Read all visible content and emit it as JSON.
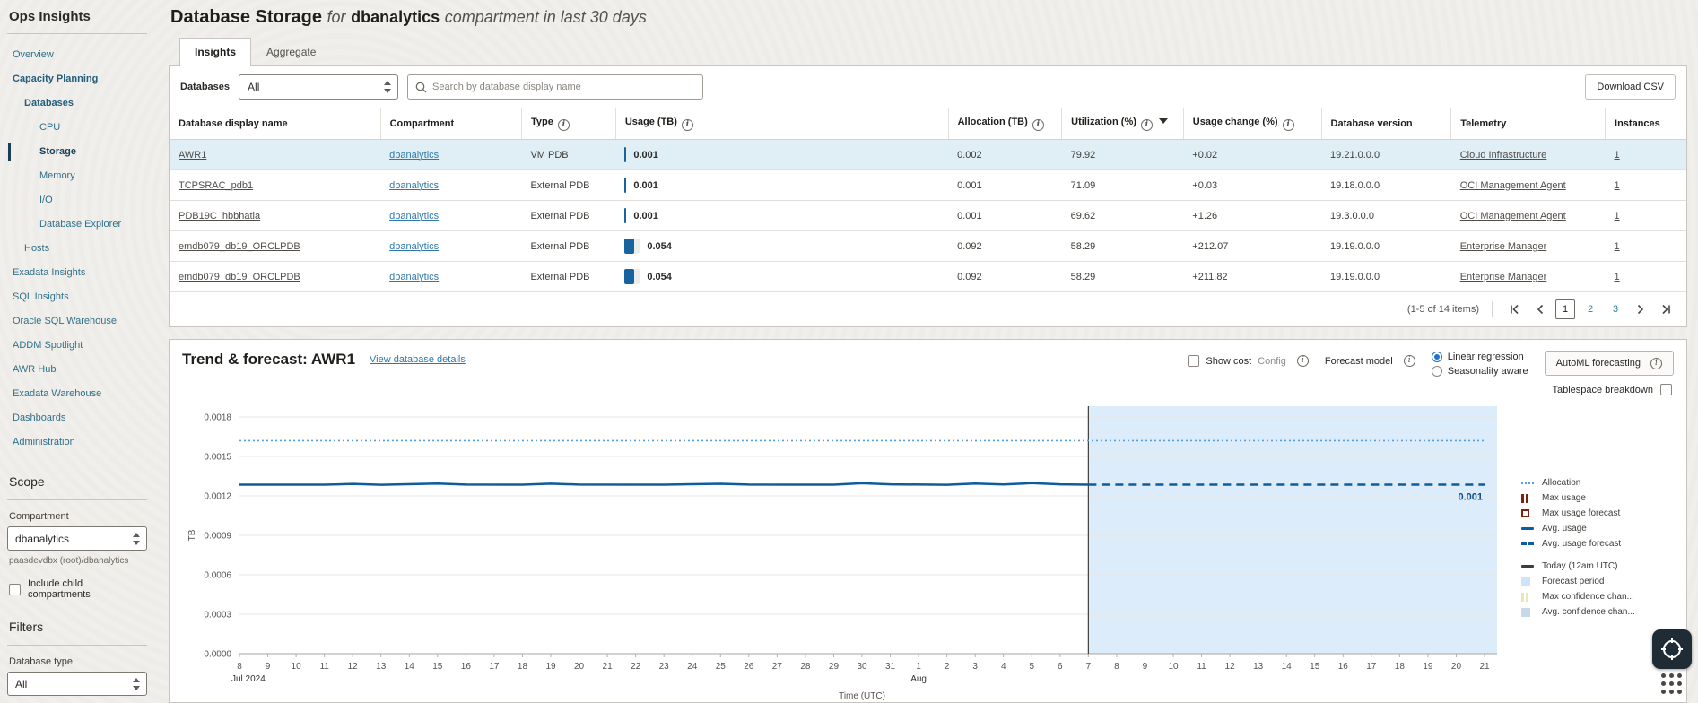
{
  "app": {
    "title": "Ops Insights"
  },
  "sidebar": {
    "nav": [
      {
        "label": "Overview",
        "indent": 0,
        "bold": false,
        "active": false
      },
      {
        "label": "Capacity Planning",
        "indent": 0,
        "bold": true,
        "active": false
      },
      {
        "label": "Databases",
        "indent": 1,
        "bold": true,
        "active": false
      },
      {
        "label": "CPU",
        "indent": 2,
        "bold": false,
        "active": false
      },
      {
        "label": "Storage",
        "indent": 2,
        "bold": true,
        "active": true
      },
      {
        "label": "Memory",
        "indent": 2,
        "bold": false,
        "active": false
      },
      {
        "label": "I/O",
        "indent": 2,
        "bold": false,
        "active": false
      },
      {
        "label": "Database Explorer",
        "indent": 2,
        "bold": false,
        "active": false
      },
      {
        "label": "Hosts",
        "indent": 1,
        "bold": false,
        "active": false
      },
      {
        "label": "Exadata Insights",
        "indent": 0,
        "bold": false,
        "active": false
      },
      {
        "label": "SQL Insights",
        "indent": 0,
        "bold": false,
        "active": false
      },
      {
        "label": "Oracle SQL Warehouse",
        "indent": 0,
        "bold": false,
        "active": false
      },
      {
        "label": "ADDM Spotlight",
        "indent": 0,
        "bold": false,
        "active": false
      },
      {
        "label": "AWR Hub",
        "indent": 0,
        "bold": false,
        "active": false
      },
      {
        "label": "Exadata Warehouse",
        "indent": 0,
        "bold": false,
        "active": false
      },
      {
        "label": "Dashboards",
        "indent": 0,
        "bold": false,
        "active": false
      },
      {
        "label": "Administration",
        "indent": 0,
        "bold": false,
        "active": false
      }
    ],
    "scope": {
      "heading": "Scope",
      "compartment_label": "Compartment",
      "compartment_value": "dbanalytics",
      "compartment_path": "paasdevdbx (root)/dbanalytics",
      "include_children_label": "Include child compartments"
    },
    "filters": {
      "heading": "Filters",
      "database_type_label": "Database type",
      "database_type_value": "All"
    }
  },
  "header": {
    "title": "Database Storage",
    "for_word": "for",
    "compartment": "dbanalytics",
    "suffix": "compartment in last 30 days"
  },
  "tabs": [
    {
      "label": "Insights",
      "active": true
    },
    {
      "label": "Aggregate",
      "active": false
    }
  ],
  "toolbar": {
    "databases_label": "Databases",
    "databases_value": "All",
    "search_placeholder": "Search by database display name",
    "download_csv_label": "Download CSV"
  },
  "table": {
    "columns": [
      {
        "label": "Database display name",
        "info": false,
        "sort": null
      },
      {
        "label": "Compartment",
        "info": false,
        "sort": null
      },
      {
        "label": "Type",
        "info": true,
        "sort": null
      },
      {
        "label": "Usage (TB)",
        "info": true,
        "sort": null
      },
      {
        "label": "Allocation (TB)",
        "info": true,
        "sort": null
      },
      {
        "label": "Utilization (%)",
        "info": true,
        "sort": "desc"
      },
      {
        "label": "Usage change (%)",
        "info": true,
        "sort": null
      },
      {
        "label": "Database version",
        "info": false,
        "sort": null
      },
      {
        "label": "Telemetry",
        "info": false,
        "sort": null
      },
      {
        "label": "Instances",
        "info": false,
        "sort": null
      }
    ],
    "rows": [
      {
        "name": "AWR1",
        "compartment": "dbanalytics",
        "type": "VM PDB",
        "usage": "0.001",
        "allocation": "0.002",
        "utilization": "79.92",
        "usage_change": "+0.02",
        "version": "19.21.0.0.0",
        "telemetry": "Cloud Infrastructure",
        "instances": "1",
        "selected": true
      },
      {
        "name": "TCPSRAC_pdb1",
        "compartment": "dbanalytics",
        "type": "External PDB",
        "usage": "0.001",
        "allocation": "0.001",
        "utilization": "71.09",
        "usage_change": "+0.03",
        "version": "19.18.0.0.0",
        "telemetry": "OCI Management Agent",
        "instances": "1",
        "selected": false
      },
      {
        "name": "PDB19C_hbbhatia",
        "compartment": "dbanalytics",
        "type": "External PDB",
        "usage": "0.001",
        "allocation": "0.001",
        "utilization": "69.62",
        "usage_change": "+1.26",
        "version": "19.3.0.0.0",
        "telemetry": "OCI Management Agent",
        "instances": "1",
        "selected": false
      },
      {
        "name": "emdb079_db19_ORCLPDB",
        "compartment": "dbanalytics",
        "type": "External PDB",
        "usage": "0.054",
        "allocation": "0.092",
        "utilization": "58.29",
        "usage_change": "+212.07",
        "version": "19.19.0.0.0",
        "telemetry": "Enterprise Manager",
        "instances": "1",
        "selected": false
      },
      {
        "name": "emdb079_db19_ORCLPDB",
        "compartment": "dbanalytics",
        "type": "External PDB",
        "usage": "0.054",
        "allocation": "0.092",
        "utilization": "58.29",
        "usage_change": "+211.82",
        "version": "19.19.0.0.0",
        "telemetry": "Enterprise Manager",
        "instances": "1",
        "selected": false
      }
    ],
    "max_usage_tb": 0.054,
    "max_allocation_tb": 0.092,
    "pagination": {
      "summary": "(1-5 of 14 items)",
      "pages": [
        "1",
        "2",
        "3"
      ],
      "current": "1"
    }
  },
  "trend": {
    "title": "Trend & forecast: AWR1",
    "link": "View database details",
    "show_cost_label": "Show cost",
    "config_label": "Config",
    "forecast_model_label": "Forecast model",
    "radio_options": [
      "Linear regression",
      "Seasonality aware"
    ],
    "radio_selected": "Linear regression",
    "automl_label": "AutoML forecasting",
    "tablespace_label": "Tablespace breakdown"
  },
  "chart_data": {
    "type": "line",
    "title": "Trend & forecast: AWR1",
    "xlabel": "Time (UTC)",
    "ylabel": "TB",
    "ylim": [
      0,
      0.0018
    ],
    "yticks": [
      0.0,
      0.0003,
      0.0006,
      0.0009,
      0.0012,
      0.0015,
      0.0018
    ],
    "grid": true,
    "legend_position": "right",
    "x_days": [
      "8",
      "9",
      "10",
      "11",
      "12",
      "13",
      "14",
      "15",
      "16",
      "17",
      "18",
      "19",
      "20",
      "21",
      "22",
      "23",
      "24",
      "25",
      "26",
      "27",
      "28",
      "29",
      "30",
      "31",
      "1",
      "2",
      "3",
      "4",
      "5",
      "6",
      "7",
      "8",
      "9",
      "10",
      "11",
      "12",
      "13",
      "14",
      "15",
      "16",
      "17",
      "18",
      "19",
      "20",
      "21"
    ],
    "x_group_labels": [
      {
        "label": "Jul 2024",
        "index": 0
      },
      {
        "label": "Aug",
        "index": 24
      }
    ],
    "today_index": 30,
    "forecast_region": [
      30,
      44
    ],
    "colors": {
      "forecast_region": "#dcecfa",
      "allocation": "#57a0dc",
      "avg_usage": "#0d5c9b",
      "today_line": "#3f3d3a",
      "max_usage": "#7e2310"
    },
    "series": [
      {
        "name": "Allocation",
        "style": "dotted",
        "color": "#57a0dc",
        "points": [
          [
            0,
            0.00162
          ],
          [
            44,
            0.00162
          ]
        ]
      },
      {
        "name": "Avg. usage",
        "style": "solid",
        "color": "#0d5c9b",
        "points": [
          [
            0,
            0.001285
          ],
          [
            3,
            0.001285
          ],
          [
            4,
            0.001291
          ],
          [
            5,
            0.001284
          ],
          [
            7,
            0.001294
          ],
          [
            8,
            0.001286
          ],
          [
            10,
            0.001285
          ],
          [
            11,
            0.001293
          ],
          [
            12,
            0.001286
          ],
          [
            15,
            0.001285
          ],
          [
            17,
            0.001292
          ],
          [
            18,
            0.001286
          ],
          [
            21,
            0.001285
          ],
          [
            22,
            0.001296
          ],
          [
            23,
            0.001288
          ],
          [
            25,
            0.001284
          ],
          [
            26,
            0.001294
          ],
          [
            27,
            0.001287
          ],
          [
            28,
            0.001297
          ],
          [
            29,
            0.001288
          ],
          [
            30,
            0.001285
          ]
        ]
      },
      {
        "name": "Avg. usage forecast",
        "style": "dashed",
        "color": "#0d5c9b",
        "points": [
          [
            30,
            0.001285
          ],
          [
            44,
            0.001285
          ]
        ],
        "end_label": "0.001"
      }
    ],
    "legend": [
      {
        "label": "Allocation",
        "swatch": "dotted",
        "color": "#57a0dc",
        "gap_before": false
      },
      {
        "label": "Max usage",
        "swatch": "bars",
        "color": "#7e2310",
        "gap_before": false
      },
      {
        "label": "Max usage forecast",
        "swatch": "hollow",
        "color": "#7e2310",
        "gap_before": false
      },
      {
        "label": "Avg. usage",
        "swatch": "line",
        "color": "#0d5c9b",
        "gap_before": false
      },
      {
        "label": "Avg. usage forecast",
        "swatch": "dashed",
        "color": "#0d5c9b",
        "gap_before": false
      },
      {
        "label": "Today (12am UTC)",
        "swatch": "line",
        "color": "#3f3d3a",
        "gap_before": true
      },
      {
        "label": "Forecast period",
        "swatch": "square",
        "color": "#cfe5f7",
        "gap_before": false
      },
      {
        "label": "Max confidence chan...",
        "swatch": "bars",
        "color": "#efe3b8",
        "gap_before": false
      },
      {
        "label": "Avg. confidence chan...",
        "swatch": "square",
        "color": "#c7d8e8",
        "gap_before": false
      }
    ]
  }
}
